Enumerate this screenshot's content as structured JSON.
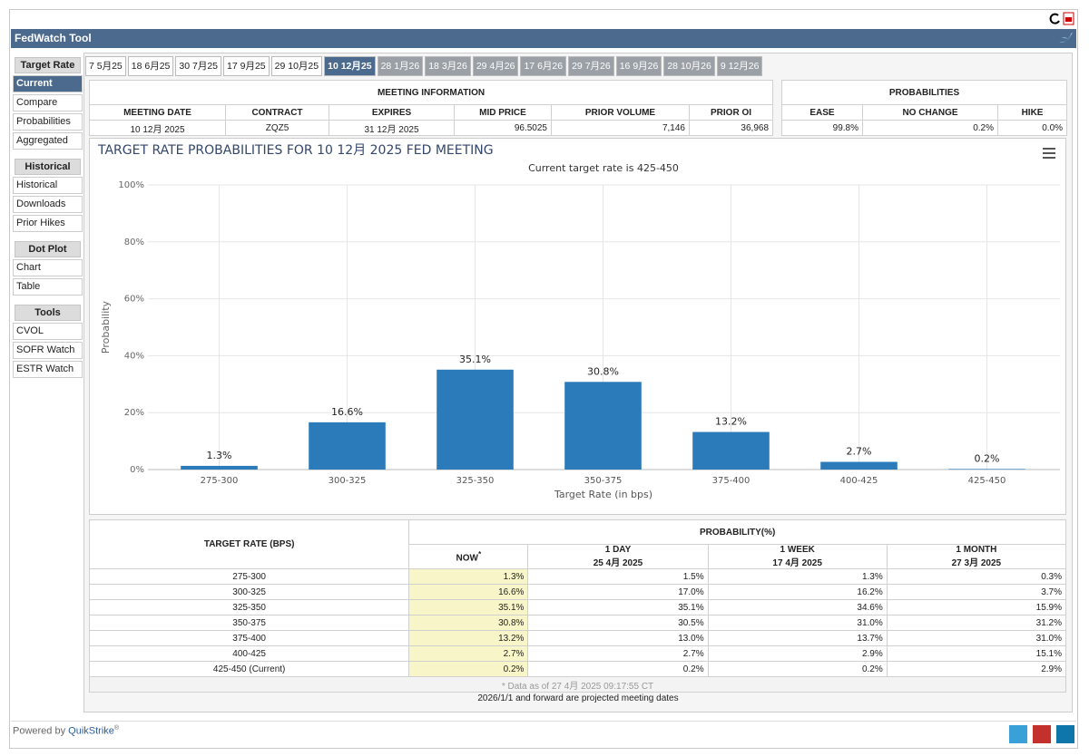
{
  "header": {
    "title": "FedWatch Tool"
  },
  "sidebar": [
    {
      "title": "Target Rate",
      "items": [
        "Current",
        "Compare",
        "Probabilities",
        "Aggregated"
      ]
    },
    {
      "title": "Historical",
      "items": [
        "Historical",
        "Downloads",
        "Prior Hikes"
      ]
    },
    {
      "title": "Dot Plot",
      "items": [
        "Chart",
        "Table"
      ]
    },
    {
      "title": "Tools",
      "items": [
        "CVOL",
        "SOFR Watch",
        "ESTR Watch"
      ]
    }
  ],
  "tabs": [
    "7 5月25",
    "18 6月25",
    "30 7月25",
    "17 9月25",
    "29 10月25",
    "10 12月25",
    "28 1月26",
    "18 3月26",
    "29 4月26",
    "17 6月26",
    "29 7月26",
    "16 9月26",
    "28 10月26",
    "9 12月26"
  ],
  "meeting_info": {
    "title": "MEETING INFORMATION",
    "headers": [
      "MEETING DATE",
      "CONTRACT",
      "EXPIRES",
      "MID PRICE",
      "PRIOR VOLUME",
      "PRIOR OI"
    ],
    "values": [
      "10 12月 2025",
      "ZQZ5",
      "31 12月 2025",
      "96.5025",
      "7,146",
      "36,968"
    ]
  },
  "probabilities": {
    "title": "PROBABILITIES",
    "headers": [
      "EASE",
      "NO CHANGE",
      "HIKE"
    ],
    "values": [
      "99.8%",
      "0.2%",
      "0.0%"
    ]
  },
  "chart_data": {
    "type": "bar",
    "title": "TARGET RATE PROBABILITIES FOR 10 12月 2025 FED MEETING",
    "subtitle": "Current target rate is 425-450",
    "x_label": "Target Rate (in bps)",
    "y_label": "Probability",
    "categories": [
      "275-300",
      "300-325",
      "325-350",
      "350-375",
      "375-400",
      "400-425",
      "425-450"
    ],
    "values": [
      1.3,
      16.6,
      35.1,
      30.8,
      13.2,
      2.7,
      0.2
    ],
    "value_labels": [
      "1.3%",
      "16.6%",
      "35.1%",
      "30.8%",
      "13.2%",
      "2.7%",
      "0.2%"
    ],
    "color": "#2b7bba",
    "ylim": [
      0,
      100
    ],
    "yticks": [
      {
        "value": 0,
        "label": "0%"
      },
      {
        "value": 20,
        "label": "20%"
      },
      {
        "value": 40,
        "label": "40%"
      },
      {
        "value": 60,
        "label": "60%"
      },
      {
        "value": 80,
        "label": "80%"
      },
      {
        "value": 100,
        "label": "100%"
      }
    ],
    "grid": true
  },
  "table": {
    "row_header": "TARGET RATE (BPS)",
    "group_header": "PROBABILITY(%)",
    "columns": [
      {
        "label": "NOW",
        "mark": "*"
      },
      {
        "label": "1 DAY",
        "date": "25 4月 2025"
      },
      {
        "label": "1 WEEK",
        "date": "17 4月 2025"
      },
      {
        "label": "1 MONTH",
        "date": "27 3月 2025"
      }
    ],
    "rows": [
      [
        "275-300",
        "1.3%",
        "1.5%",
        "1.3%",
        "0.3%"
      ],
      [
        "300-325",
        "16.6%",
        "17.0%",
        "16.2%",
        "3.7%"
      ],
      [
        "325-350",
        "35.1%",
        "35.1%",
        "34.6%",
        "15.9%"
      ],
      [
        "350-375",
        "30.8%",
        "30.5%",
        "31.0%",
        "31.2%"
      ],
      [
        "375-400",
        "13.2%",
        "13.0%",
        "13.7%",
        "31.0%"
      ],
      [
        "400-425",
        "2.7%",
        "2.7%",
        "2.9%",
        "15.1%"
      ],
      [
        "425-450 (Current)",
        "0.2%",
        "0.2%",
        "0.2%",
        "2.9%"
      ]
    ],
    "note": "* Data as of 27 4月 2025 09:17:55 CT"
  },
  "footnote": "2026/1/1 and forward are projected meeting dates",
  "footer": {
    "prefix": "Powered by",
    "brand": "QuikStrike",
    "mark": "®"
  }
}
